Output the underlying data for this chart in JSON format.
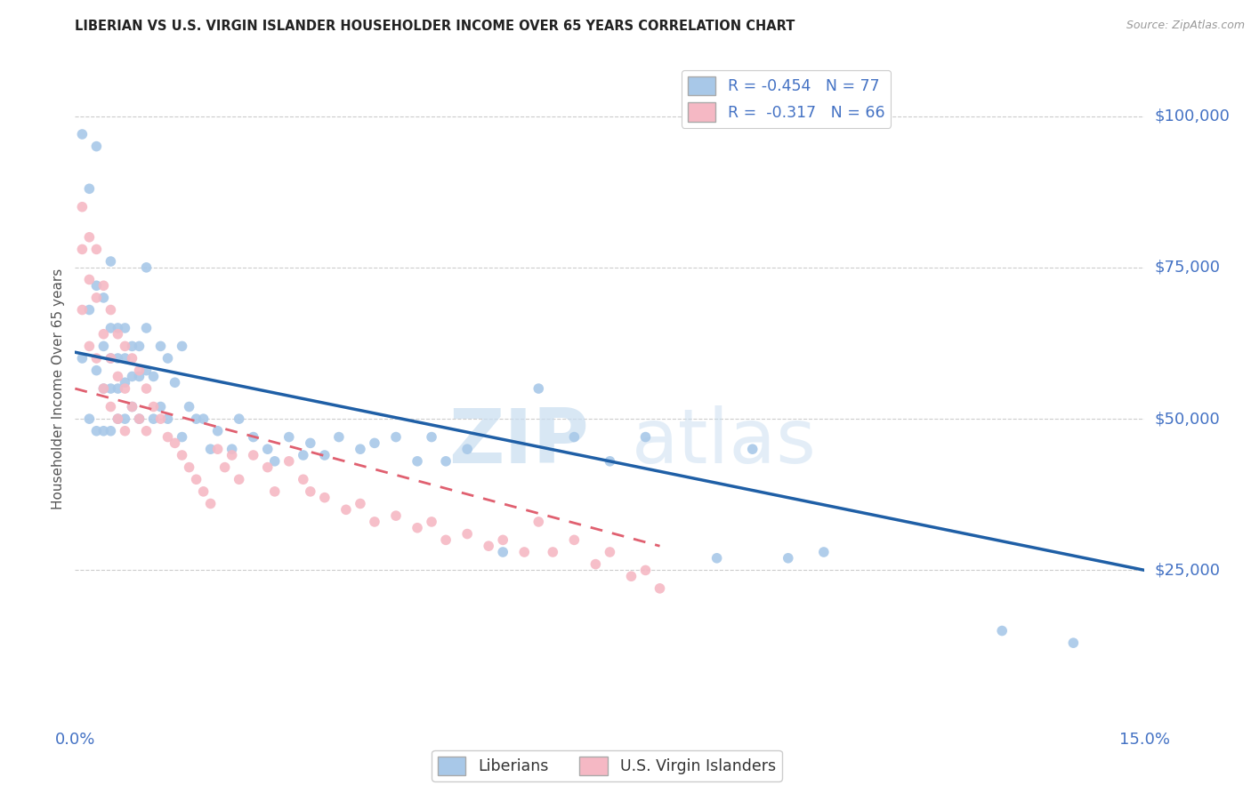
{
  "title": "LIBERIAN VS U.S. VIRGIN ISLANDER HOUSEHOLDER INCOME OVER 65 YEARS CORRELATION CHART",
  "source": "Source: ZipAtlas.com",
  "ylabel": "Householder Income Over 65 years",
  "yaxis_labels": [
    "$100,000",
    "$75,000",
    "$50,000",
    "$25,000"
  ],
  "yaxis_values": [
    100000,
    75000,
    50000,
    25000
  ],
  "xlim": [
    0.0,
    0.15
  ],
  "ylim": [
    0,
    110000
  ],
  "watermark_zip": "ZIP",
  "watermark_atlas": "atlas",
  "legend_R1": "R = -0.454",
  "legend_N1": "N = 77",
  "legend_R2": "R =  -0.317",
  "legend_N2": "N = 66",
  "color_blue": "#a8c8e8",
  "color_blue_line": "#1f5fa6",
  "color_pink": "#f5b8c4",
  "color_pink_line": "#e06070",
  "color_axis_labels": "#4472c4",
  "color_grid": "#cccccc",
  "liberian_x": [
    0.001,
    0.001,
    0.002,
    0.002,
    0.002,
    0.003,
    0.003,
    0.003,
    0.003,
    0.004,
    0.004,
    0.004,
    0.004,
    0.005,
    0.005,
    0.005,
    0.005,
    0.005,
    0.006,
    0.006,
    0.006,
    0.006,
    0.007,
    0.007,
    0.007,
    0.007,
    0.008,
    0.008,
    0.008,
    0.009,
    0.009,
    0.009,
    0.01,
    0.01,
    0.01,
    0.011,
    0.011,
    0.012,
    0.012,
    0.013,
    0.013,
    0.014,
    0.015,
    0.015,
    0.016,
    0.017,
    0.018,
    0.019,
    0.02,
    0.022,
    0.023,
    0.025,
    0.027,
    0.028,
    0.03,
    0.032,
    0.033,
    0.035,
    0.037,
    0.04,
    0.042,
    0.045,
    0.048,
    0.05,
    0.052,
    0.055,
    0.06,
    0.065,
    0.07,
    0.075,
    0.08,
    0.09,
    0.095,
    0.1,
    0.105,
    0.13,
    0.14
  ],
  "liberian_y": [
    97000,
    60000,
    88000,
    68000,
    50000,
    95000,
    72000,
    58000,
    48000,
    70000,
    62000,
    55000,
    48000,
    76000,
    65000,
    60000,
    55000,
    48000,
    65000,
    60000,
    55000,
    50000,
    65000,
    60000,
    56000,
    50000,
    62000,
    57000,
    52000,
    62000,
    57000,
    50000,
    75000,
    65000,
    58000,
    57000,
    50000,
    62000,
    52000,
    60000,
    50000,
    56000,
    62000,
    47000,
    52000,
    50000,
    50000,
    45000,
    48000,
    45000,
    50000,
    47000,
    45000,
    43000,
    47000,
    44000,
    46000,
    44000,
    47000,
    45000,
    46000,
    47000,
    43000,
    47000,
    43000,
    45000,
    28000,
    55000,
    47000,
    43000,
    47000,
    27000,
    45000,
    27000,
    28000,
    15000,
    13000
  ],
  "virgin_x": [
    0.001,
    0.001,
    0.001,
    0.002,
    0.002,
    0.002,
    0.003,
    0.003,
    0.003,
    0.004,
    0.004,
    0.004,
    0.005,
    0.005,
    0.005,
    0.006,
    0.006,
    0.006,
    0.007,
    0.007,
    0.007,
    0.008,
    0.008,
    0.009,
    0.009,
    0.01,
    0.01,
    0.011,
    0.012,
    0.013,
    0.014,
    0.015,
    0.016,
    0.017,
    0.018,
    0.019,
    0.02,
    0.021,
    0.022,
    0.023,
    0.025,
    0.027,
    0.028,
    0.03,
    0.032,
    0.033,
    0.035,
    0.038,
    0.04,
    0.042,
    0.045,
    0.048,
    0.05,
    0.052,
    0.055,
    0.058,
    0.06,
    0.063,
    0.065,
    0.067,
    0.07,
    0.073,
    0.075,
    0.078,
    0.08,
    0.082
  ],
  "virgin_y": [
    85000,
    78000,
    68000,
    80000,
    73000,
    62000,
    78000,
    70000,
    60000,
    72000,
    64000,
    55000,
    68000,
    60000,
    52000,
    64000,
    57000,
    50000,
    62000,
    55000,
    48000,
    60000,
    52000,
    58000,
    50000,
    55000,
    48000,
    52000,
    50000,
    47000,
    46000,
    44000,
    42000,
    40000,
    38000,
    36000,
    45000,
    42000,
    44000,
    40000,
    44000,
    42000,
    38000,
    43000,
    40000,
    38000,
    37000,
    35000,
    36000,
    33000,
    34000,
    32000,
    33000,
    30000,
    31000,
    29000,
    30000,
    28000,
    33000,
    28000,
    30000,
    26000,
    28000,
    24000,
    25000,
    22000
  ],
  "blue_line_x": [
    0.0,
    0.15
  ],
  "blue_line_y": [
    61000,
    25000
  ],
  "pink_line_x": [
    0.0,
    0.082
  ],
  "pink_line_y": [
    55000,
    29000
  ]
}
